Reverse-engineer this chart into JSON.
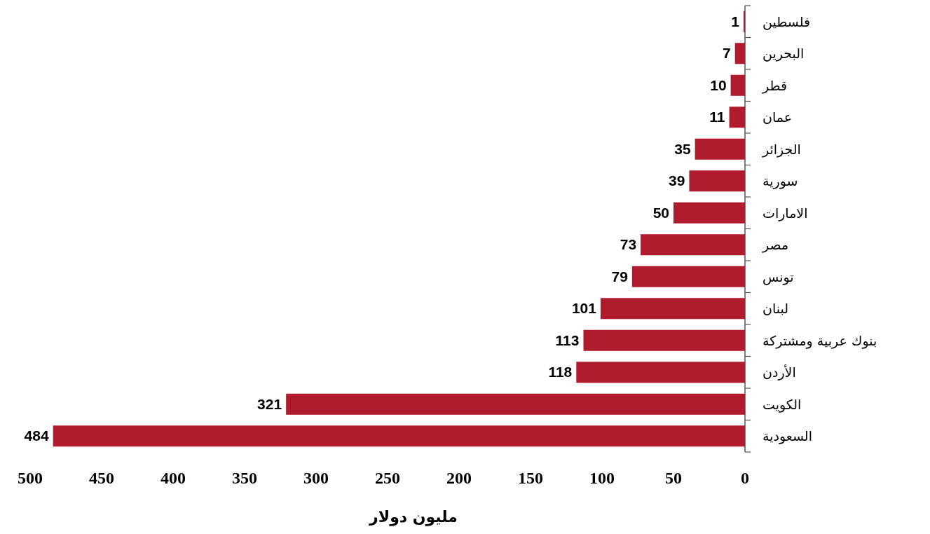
{
  "chart_data": {
    "type": "bar",
    "orientation": "horizontal",
    "xlabel": "مليون دولار",
    "categories": [
      "فلسطين",
      "البحرين",
      "قطر",
      "عمان",
      "الجزائر",
      "سورية",
      "الامارات",
      "مصر",
      "تونس",
      "لبنان",
      "بنوك عربية ومشتركة",
      "الأردن",
      "الكويت",
      "السعودية"
    ],
    "values": [
      1,
      7,
      10,
      11,
      35,
      39,
      50,
      73,
      79,
      101,
      113,
      118,
      321,
      484
    ],
    "color": "#b01c2e",
    "xlim": [
      500,
      0
    ],
    "xticks": [
      0,
      50,
      100,
      150,
      200,
      250,
      300,
      350,
      400,
      450,
      500
    ],
    "data_labels": true
  }
}
